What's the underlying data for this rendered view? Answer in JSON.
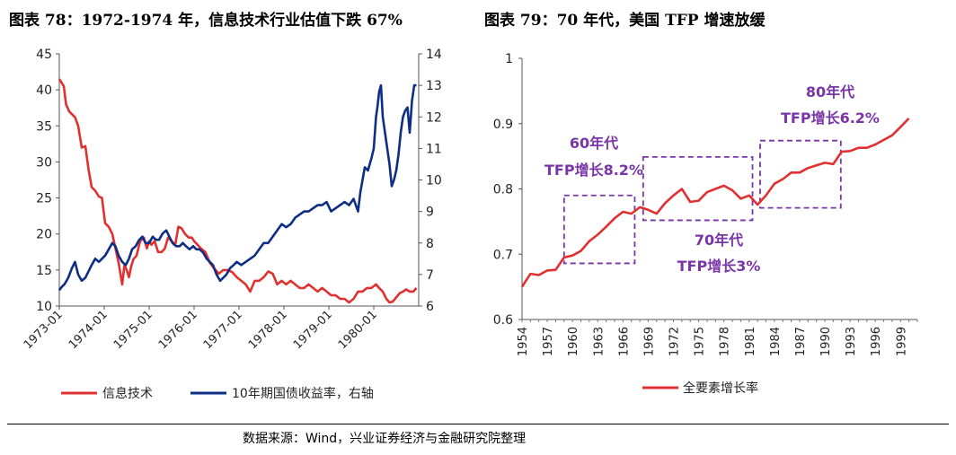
{
  "titles": {
    "left": "图表 78：1972-1974 年，信息技术行业估值下跌 67%",
    "right": "图表 79：70 年代，美国 TFP 增速放缓"
  },
  "source": "数据来源：Wind，兴业证券经济与金融研究院整理",
  "colors": {
    "red": "#e03030",
    "navy": "#0d2e84",
    "purple": "#7a35a8"
  },
  "chart_data": [
    {
      "type": "line",
      "categories": [
        "1973-01",
        "1974-01",
        "1975-01",
        "1976-01",
        "1977-01",
        "1978-01",
        "1979-01",
        "1980-01"
      ],
      "y_left": {
        "ticks": [
          "10",
          "15",
          "20",
          "25",
          "30",
          "35",
          "40",
          "45"
        ],
        "range": [
          10,
          45
        ]
      },
      "y_right": {
        "ticks": [
          "6",
          "7",
          "8",
          "9",
          "10",
          "11",
          "12",
          "13",
          "14"
        ],
        "range": [
          6,
          14
        ]
      },
      "series": [
        {
          "name": "信息技术",
          "color": "#e03030",
          "axis": "left",
          "x": [
            1973.0,
            1973.05,
            1973.1,
            1973.15,
            1973.22,
            1973.3,
            1973.35,
            1973.42,
            1973.5,
            1973.58,
            1973.65,
            1973.72,
            1973.8,
            1973.88,
            1973.95,
            1974.02,
            1974.1,
            1974.18,
            1974.25,
            1974.32,
            1974.4,
            1974.45,
            1974.5,
            1974.55,
            1974.6,
            1974.65,
            1974.72,
            1974.8,
            1974.88,
            1974.95,
            1975.0,
            1975.05,
            1975.12,
            1975.2,
            1975.28,
            1975.35,
            1975.42,
            1975.5,
            1975.58,
            1975.65,
            1975.72,
            1975.8,
            1975.88,
            1975.95,
            1976.0,
            1976.08,
            1976.15,
            1976.25,
            1976.35,
            1976.45,
            1976.55,
            1976.65,
            1976.75,
            1976.85,
            1976.95,
            1977.05,
            1977.15,
            1977.25,
            1977.35,
            1977.45,
            1977.55,
            1977.65,
            1977.75,
            1977.85,
            1977.95,
            1978.05,
            1978.15,
            1978.25,
            1978.35,
            1978.45,
            1978.55,
            1978.65,
            1978.75,
            1978.85,
            1978.95,
            1979.05,
            1979.15,
            1979.25,
            1979.35,
            1979.45,
            1979.55,
            1979.65,
            1979.75,
            1979.85,
            1979.95,
            1980.05,
            1980.12,
            1980.2,
            1980.28,
            1980.35,
            1980.42,
            1980.5,
            1980.58,
            1980.65,
            1980.72,
            1980.8,
            1980.88,
            1980.95
          ],
          "values": [
            41.5,
            41,
            40.5,
            38,
            37,
            36.5,
            36.2,
            35,
            32,
            32.2,
            29,
            26.5,
            26,
            25.2,
            25,
            21.5,
            21,
            20,
            18,
            16,
            13,
            15.7,
            15,
            14,
            15.5,
            16.5,
            17,
            19,
            19.5,
            18,
            19,
            18.5,
            19,
            17.5,
            17.5,
            18,
            19.5,
            19,
            18.5,
            21,
            20.8,
            20,
            19.5,
            19.5,
            19,
            18.5,
            18,
            17.5,
            16,
            15.2,
            14.5,
            15,
            15,
            14.7,
            14,
            13.5,
            13,
            12,
            13.5,
            13.5,
            14,
            14.8,
            14.5,
            13,
            13.5,
            13,
            13.5,
            13,
            12.5,
            12.5,
            13,
            12.5,
            12,
            12.5,
            12,
            11.5,
            11.5,
            11,
            11,
            10.5,
            11,
            12,
            12,
            12.5,
            12.5,
            13,
            12.5,
            12,
            11,
            10.5,
            10.6,
            11.2,
            11.8,
            12,
            12.3,
            12,
            12,
            12.5
          ]
        },
        {
          "name": "10年期国债收益率，右轴",
          "color": "#0d2e84",
          "axis": "right",
          "x": [
            1973.0,
            1973.05,
            1973.12,
            1973.2,
            1973.28,
            1973.35,
            1973.42,
            1973.5,
            1973.58,
            1973.65,
            1973.72,
            1973.8,
            1973.88,
            1973.95,
            1974.02,
            1974.1,
            1974.18,
            1974.25,
            1974.32,
            1974.4,
            1974.48,
            1974.55,
            1974.62,
            1974.7,
            1974.78,
            1974.85,
            1974.92,
            1975.0,
            1975.08,
            1975.15,
            1975.22,
            1975.3,
            1975.38,
            1975.45,
            1975.52,
            1975.6,
            1975.68,
            1975.75,
            1975.82,
            1975.9,
            1975.98,
            1976.05,
            1976.12,
            1976.2,
            1976.28,
            1976.35,
            1976.42,
            1976.5,
            1976.58,
            1976.65,
            1976.72,
            1976.8,
            1976.88,
            1976.95,
            1977.05,
            1977.15,
            1977.25,
            1977.35,
            1977.45,
            1977.55,
            1977.65,
            1977.75,
            1977.85,
            1977.95,
            1978.05,
            1978.15,
            1978.25,
            1978.35,
            1978.45,
            1978.55,
            1978.65,
            1978.75,
            1978.85,
            1978.95,
            1979.05,
            1979.15,
            1979.25,
            1979.35,
            1979.45,
            1979.55,
            1979.65,
            1979.7,
            1979.75,
            1979.8,
            1979.87,
            1979.95,
            1980.0,
            1980.05,
            1980.08,
            1980.12,
            1980.16,
            1980.2,
            1980.25,
            1980.3,
            1980.35,
            1980.4,
            1980.45,
            1980.5,
            1980.55,
            1980.6,
            1980.65,
            1980.7,
            1980.75,
            1980.8,
            1980.85,
            1980.9,
            1980.95
          ],
          "values": [
            6.5,
            6.6,
            6.7,
            6.9,
            7.2,
            7.4,
            7.0,
            6.8,
            6.9,
            7.1,
            7.3,
            7.5,
            7.4,
            7.5,
            7.6,
            7.8,
            8.0,
            7.9,
            7.6,
            7.4,
            7.3,
            7.5,
            7.8,
            7.9,
            8.1,
            8.2,
            8.0,
            8.0,
            8.2,
            8.1,
            8.1,
            8.3,
            8.4,
            8.2,
            8.0,
            7.9,
            7.9,
            8.0,
            7.9,
            7.8,
            7.9,
            7.8,
            7.8,
            7.7,
            7.5,
            7.4,
            7.3,
            7.0,
            6.8,
            6.9,
            7.0,
            7.2,
            7.3,
            7.4,
            7.3,
            7.4,
            7.5,
            7.6,
            7.8,
            8.0,
            8.0,
            8.2,
            8.4,
            8.6,
            8.5,
            8.6,
            8.8,
            8.9,
            9.0,
            9.0,
            9.1,
            9.2,
            9.2,
            9.3,
            9.0,
            9.1,
            9.2,
            9.3,
            9.2,
            9.4,
            9.0,
            9.6,
            10.0,
            10.4,
            10.3,
            10.7,
            11.0,
            12.0,
            12.3,
            12.8,
            13.0,
            12.0,
            11.5,
            11.0,
            10.5,
            9.8,
            10.0,
            10.3,
            10.8,
            11.5,
            12.0,
            12.2,
            12.3,
            11.5,
            12.5,
            13.0,
            13.0
          ]
        }
      ]
    },
    {
      "type": "line",
      "categories": [
        "1954",
        "1957",
        "1960",
        "1963",
        "1966",
        "1969",
        "1972",
        "1975",
        "1978",
        "1981",
        "1984",
        "1987",
        "1990",
        "1993",
        "1996",
        "1999"
      ],
      "y": {
        "ticks": [
          "0.6",
          "0.7",
          "0.8",
          "0.9",
          "1"
        ],
        "range": [
          0.6,
          1.0
        ]
      },
      "series": [
        {
          "name": "全要素增长率",
          "color": "#e03030",
          "x": [
            1954,
            1955,
            1956,
            1957,
            1958,
            1959,
            1960,
            1961,
            1962,
            1963,
            1964,
            1965,
            1966,
            1967,
            1968,
            1969,
            1970,
            1971,
            1972,
            1973,
            1974,
            1975,
            1976,
            1977,
            1978,
            1979,
            1980,
            1981,
            1982,
            1983,
            1984,
            1985,
            1986,
            1987,
            1988,
            1989,
            1990,
            1991,
            1992,
            1993,
            1994,
            1995,
            1996,
            1997,
            1998,
            1999,
            2000
          ],
          "values": [
            0.65,
            0.67,
            0.668,
            0.675,
            0.676,
            0.695,
            0.698,
            0.705,
            0.72,
            0.73,
            0.742,
            0.755,
            0.765,
            0.762,
            0.772,
            0.768,
            0.762,
            0.778,
            0.79,
            0.8,
            0.78,
            0.782,
            0.795,
            0.8,
            0.805,
            0.798,
            0.785,
            0.79,
            0.776,
            0.79,
            0.808,
            0.815,
            0.825,
            0.825,
            0.832,
            0.836,
            0.84,
            0.838,
            0.857,
            0.858,
            0.863,
            0.863,
            0.868,
            0.875,
            0.882,
            0.895,
            0.908
          ]
        }
      ],
      "annotations": [
        {
          "label": "60年代",
          "sublabel": "TFP增长8.2%"
        },
        {
          "label": "70年代",
          "sublabel": "TFP增长3%"
        },
        {
          "label": "80年代",
          "sublabel": "TFP增长6.2%"
        }
      ]
    }
  ]
}
